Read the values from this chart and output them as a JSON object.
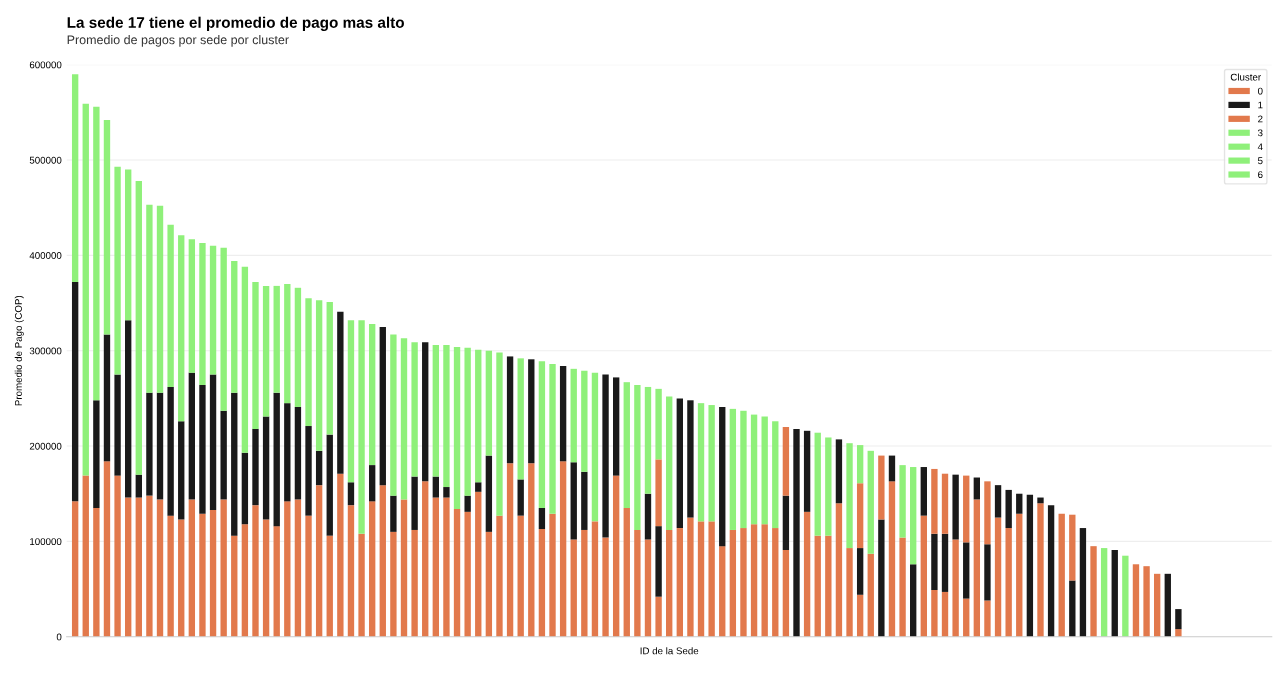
{
  "chart_data": {
    "type": "bar",
    "stacked": true,
    "title": "La sede 17 tiene el promedio de pago mas alto",
    "subtitle": "Promedio de pagos por sede por cluster",
    "xlabel": "ID de la Sede",
    "ylabel": "Promedio de Pago (COP)",
    "legend_title": "Cluster",
    "legend": "top right",
    "grid": "y",
    "ylim": [
      0,
      600000
    ],
    "yticks": [
      0,
      100000,
      200000,
      300000,
      400000,
      500000,
      600000
    ],
    "categories": [
      null,
      null,
      null,
      null,
      null,
      null,
      null,
      null,
      null,
      null,
      null,
      null,
      null,
      null,
      null,
      null,
      null,
      null,
      null,
      null,
      null,
      null,
      null,
      null,
      null,
      null,
      null,
      null,
      null,
      null,
      null,
      null,
      null,
      null,
      null,
      null,
      null,
      null,
      null,
      null,
      null,
      null,
      null,
      null,
      null,
      null,
      null,
      null,
      null,
      null,
      null,
      null,
      null,
      null,
      null,
      null,
      null,
      null,
      null,
      null,
      null,
      null,
      null,
      null,
      null,
      null,
      null,
      null,
      null,
      null,
      null,
      null,
      null,
      null,
      null,
      null,
      null,
      null,
      null,
      null,
      null,
      null,
      null,
      null,
      null,
      null,
      null,
      null,
      null,
      null,
      null,
      null,
      null,
      null,
      null,
      null,
      null,
      null,
      null,
      null,
      null,
      null,
      null,
      null,
      null,
      null,
      null,
      null,
      null,
      null,
      null,
      null,
      null
    ],
    "series": [
      {
        "name": "0",
        "color": "#e2794c",
        "values": [
          142000,
          169000,
          135000,
          184000,
          169000,
          146000,
          146000,
          148000,
          144000,
          127000,
          123000,
          144000,
          129000,
          133000,
          144000,
          106000,
          118000,
          138000,
          123000,
          116000,
          142000,
          144000,
          127000,
          159000,
          106000,
          171000,
          138000,
          108000,
          142000,
          159000,
          110000,
          144000,
          112000,
          163000,
          146000,
          146000,
          134000,
          131000,
          152000,
          110000,
          127000,
          182000,
          127000,
          182000,
          113000,
          129000,
          184000,
          102000,
          112000,
          121000,
          104000,
          169000,
          135000,
          112000,
          102000,
          42000,
          112000,
          114000,
          125000,
          121000,
          121000,
          95000,
          112000,
          114000,
          118000,
          118000,
          114000,
          91000,
          null,
          131000,
          106000,
          106000,
          140000,
          93000,
          44000,
          87000,
          null,
          163000,
          104000,
          null,
          127000,
          49000,
          47000,
          102000,
          40000,
          144000,
          38000,
          125000,
          114000,
          129000,
          null,
          140000,
          null,
          129000,
          null,
          null,
          95000,
          null,
          null,
          null,
          76000,
          74000,
          66000,
          null,
          8000,
          0,
          0,
          0,
          0,
          0,
          0,
          0,
          0
        ]
      },
      {
        "name": "1",
        "color": "#1a1a1a",
        "values": [
          230000,
          null,
          113000,
          133000,
          106000,
          186000,
          24000,
          108000,
          112000,
          135000,
          103000,
          133000,
          135000,
          142000,
          93000,
          150000,
          75000,
          80000,
          108000,
          140000,
          103000,
          97000,
          94000,
          36000,
          106000,
          170000,
          24000,
          null,
          38000,
          166000,
          38000,
          null,
          56000,
          146000,
          22000,
          11000,
          null,
          17000,
          10000,
          80000,
          null,
          112000,
          38000,
          109000,
          22000,
          null,
          100000,
          81000,
          61000,
          null,
          171000,
          103000,
          null,
          null,
          48000,
          74000,
          null,
          136000,
          123000,
          null,
          null,
          146000,
          null,
          null,
          null,
          null,
          null,
          57000,
          218000,
          85000,
          null,
          null,
          67000,
          null,
          49000,
          null,
          123000,
          27000,
          null,
          76000,
          51000,
          59000,
          61000,
          68000,
          59000,
          23000,
          59000,
          34000,
          40000,
          21000,
          149000,
          6000,
          138000,
          null,
          59000,
          114000,
          null,
          null,
          91000,
          null,
          null,
          null,
          null,
          66000,
          21000,
          null,
          null,
          null,
          null,
          null,
          null,
          null,
          null
        ]
      },
      {
        "name": "2",
        "color": "#e2794c",
        "values": [
          null,
          null,
          null,
          null,
          null,
          null,
          null,
          null,
          null,
          null,
          null,
          null,
          null,
          null,
          null,
          null,
          null,
          null,
          null,
          null,
          null,
          null,
          null,
          null,
          null,
          null,
          null,
          null,
          null,
          null,
          null,
          null,
          null,
          null,
          null,
          null,
          null,
          null,
          null,
          null,
          null,
          null,
          null,
          null,
          null,
          null,
          null,
          null,
          null,
          null,
          null,
          null,
          null,
          null,
          null,
          70000,
          null,
          null,
          null,
          null,
          null,
          null,
          null,
          null,
          null,
          null,
          null,
          72000,
          null,
          null,
          null,
          null,
          null,
          null,
          68000,
          null,
          67000,
          null,
          null,
          null,
          null,
          68000,
          63000,
          null,
          70000,
          null,
          66000,
          null,
          null,
          null,
          null,
          null,
          null,
          null,
          69000,
          null,
          null,
          null,
          null,
          null,
          null,
          null,
          null,
          null,
          null,
          null,
          null,
          null,
          null,
          null,
          null,
          null,
          null
        ]
      },
      {
        "name": "3",
        "color": "#8ff07a",
        "values": [
          218000,
          390000,
          308000,
          225000,
          218000,
          158000,
          308000,
          197000,
          196000,
          170000,
          195000,
          140000,
          149000,
          135000,
          171000,
          138000,
          195000,
          154000,
          137000,
          112000,
          125000,
          125000,
          134000,
          158000,
          139000,
          null,
          170000,
          224000,
          148000,
          null,
          169000,
          169000,
          141000,
          null,
          138000,
          149000,
          170000,
          155000,
          139000,
          110000,
          171000,
          null,
          127000,
          null,
          154000,
          157000,
          null,
          98000,
          106000,
          156000,
          null,
          null,
          132000,
          152000,
          112000,
          74000,
          140000,
          null,
          null,
          124000,
          122000,
          null,
          127000,
          123000,
          115000,
          113000,
          112000,
          null,
          null,
          null,
          108000,
          103000,
          null,
          110000,
          40000,
          108000,
          null,
          null,
          76000,
          102000,
          null,
          null,
          null,
          null,
          null,
          null,
          null,
          null,
          null,
          null,
          null,
          null,
          null,
          null,
          null,
          null,
          null,
          93000,
          null,
          85000,
          null,
          null,
          null,
          null,
          null,
          null,
          null,
          null,
          null,
          null,
          null,
          null,
          null
        ]
      },
      {
        "name": "4",
        "color": "#8ff07a",
        "values": [
          null,
          null,
          null,
          null,
          null,
          null,
          null,
          null,
          null,
          null,
          null,
          null,
          null,
          null,
          null,
          null,
          null,
          null,
          null,
          null,
          null,
          null,
          null,
          null,
          null,
          null,
          null,
          null,
          null,
          null,
          null,
          null,
          null,
          null,
          null,
          null,
          null,
          null,
          null,
          null,
          null,
          null,
          null,
          null,
          null,
          null,
          null,
          null,
          null,
          null,
          null,
          null,
          null,
          null,
          null,
          null,
          null,
          null,
          null,
          null,
          null,
          null,
          null,
          null,
          null,
          null,
          null,
          null,
          null,
          null,
          null,
          null,
          null,
          null,
          null,
          null,
          null,
          null,
          null,
          null,
          null,
          null,
          null,
          null,
          null,
          null,
          null,
          null,
          null,
          null,
          null,
          null,
          null,
          null,
          null,
          null,
          null,
          null,
          null,
          null,
          null,
          null,
          null,
          null,
          null,
          null,
          null,
          null,
          null,
          null,
          null,
          null,
          null
        ]
      },
      {
        "name": "5",
        "color": "#8ff07a",
        "values": [
          null,
          null,
          null,
          null,
          null,
          null,
          null,
          null,
          null,
          null,
          null,
          null,
          null,
          null,
          null,
          null,
          null,
          null,
          null,
          null,
          null,
          null,
          null,
          null,
          null,
          null,
          null,
          null,
          null,
          null,
          null,
          null,
          null,
          null,
          null,
          null,
          null,
          null,
          null,
          null,
          null,
          null,
          null,
          null,
          null,
          null,
          null,
          null,
          null,
          null,
          null,
          null,
          null,
          null,
          null,
          null,
          null,
          null,
          null,
          null,
          null,
          null,
          null,
          null,
          null,
          null,
          null,
          null,
          null,
          null,
          null,
          null,
          null,
          null,
          null,
          null,
          null,
          null,
          null,
          null,
          null,
          null,
          null,
          null,
          null,
          null,
          null,
          null,
          null,
          null,
          null,
          null,
          null,
          null,
          null,
          null,
          null,
          null,
          null,
          null,
          null,
          null,
          null,
          null,
          null,
          null,
          null,
          null,
          null,
          null,
          null,
          null,
          null
        ]
      },
      {
        "name": "6",
        "color": "#8ff07a",
        "values": [
          null,
          null,
          null,
          null,
          null,
          null,
          null,
          null,
          null,
          null,
          null,
          null,
          null,
          null,
          null,
          null,
          null,
          null,
          null,
          null,
          null,
          null,
          null,
          null,
          null,
          null,
          null,
          null,
          null,
          null,
          null,
          null,
          null,
          null,
          null,
          null,
          null,
          null,
          null,
          null,
          null,
          null,
          null,
          null,
          null,
          null,
          null,
          null,
          null,
          null,
          null,
          null,
          null,
          null,
          null,
          null,
          null,
          null,
          null,
          null,
          null,
          null,
          null,
          null,
          null,
          null,
          null,
          null,
          null,
          null,
          null,
          null,
          null,
          null,
          null,
          null,
          null,
          null,
          null,
          null,
          null,
          null,
          null,
          null,
          null,
          null,
          null,
          null,
          null,
          null,
          null,
          null,
          null,
          null,
          null,
          null,
          null,
          null,
          null,
          null,
          null,
          null,
          null,
          null,
          null,
          null,
          null,
          null,
          null,
          null,
          null,
          null,
          null
        ]
      }
    ]
  }
}
